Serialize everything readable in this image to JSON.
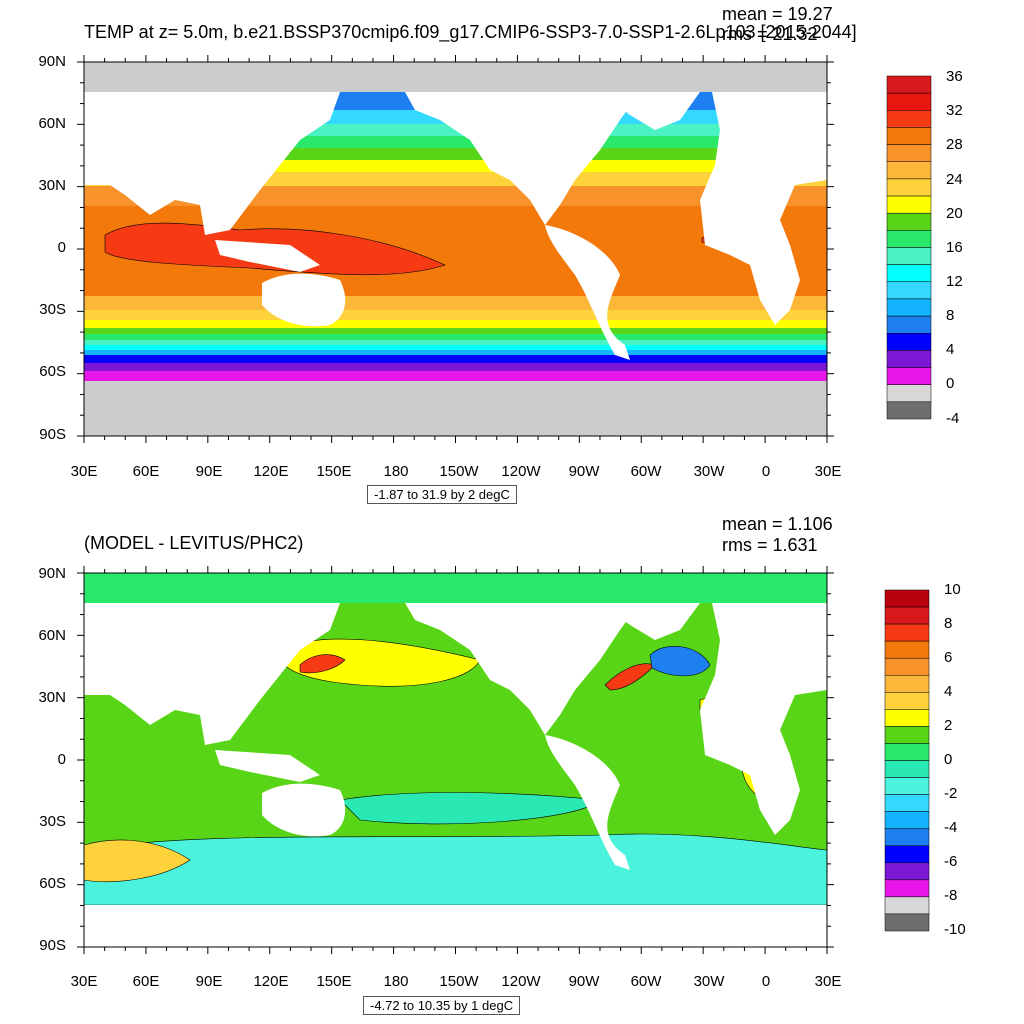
{
  "colors": {
    "land": "#ffffff",
    "ice": "#cccccc",
    "frame": "#000000"
  },
  "chart_data": [
    {
      "type": "heatmap",
      "title": "TEMP at z=   5.0m, b.e21.BSSP370cmip6.f09_g17.CMIP6-SSP3-7.0-SSP1-2.6Lp103 [2015-2044]",
      "mean_label": "mean = 19.27",
      "rms_label": "rms = 21.32",
      "range_label": "-1.87 to 31.9 by 2 degC",
      "x_ticks": [
        "30E",
        "60E",
        "90E",
        "120E",
        "150E",
        "180",
        "150W",
        "120W",
        "90W",
        "60W",
        "30W",
        "0",
        "30E"
      ],
      "y_ticks": [
        "90N",
        "60N",
        "30N",
        "0",
        "30S",
        "60S",
        "90S"
      ],
      "colorbar": {
        "labels": [
          "36",
          "32",
          "28",
          "24",
          "20",
          "16",
          "12",
          "8",
          "4",
          "0",
          "-4"
        ],
        "colors": [
          "#d7191c",
          "#e8170f",
          "#f53a14",
          "#f4790b",
          "#f7932a",
          "#fbb73a",
          "#fdd23b",
          "#ffff00",
          "#58d516",
          "#2ae86a",
          "#4bf2c4",
          "#00ffff",
          "#33d9ff",
          "#14b4ff",
          "#1e7ff0",
          "#0000ff",
          "#7d17d6",
          "#e816e8",
          "#d8d8d8",
          "#6e6e6e"
        ]
      }
    },
    {
      "type": "heatmap",
      "title": "(MODEL - LEVITUS/PHC2)",
      "mean_label": "mean = 1.106",
      "rms_label": "rms = 1.631",
      "range_label": "-4.72 to 10.35 by 1 degC",
      "x_ticks": [
        "30E",
        "60E",
        "90E",
        "120E",
        "150E",
        "180",
        "150W",
        "120W",
        "90W",
        "60W",
        "30W",
        "0",
        "30E"
      ],
      "y_ticks": [
        "90N",
        "60N",
        "30N",
        "0",
        "30S",
        "60S",
        "90S"
      ],
      "colorbar": {
        "labels": [
          "10",
          "8",
          "6",
          "4",
          "2",
          "0",
          "-2",
          "-4",
          "-6",
          "-8",
          "-10"
        ],
        "colors": [
          "#b8000e",
          "#d7191c",
          "#f53a14",
          "#f4790b",
          "#f7932a",
          "#fbb73a",
          "#fdd23b",
          "#ffff00",
          "#58d516",
          "#2ae86a",
          "#2ae8b4",
          "#4bf2dc",
          "#33d9ff",
          "#14b4ff",
          "#1e7ff0",
          "#0000ff",
          "#7d17d6",
          "#e816e8",
          "#d8d8d8",
          "#6e6e6e"
        ]
      }
    }
  ]
}
